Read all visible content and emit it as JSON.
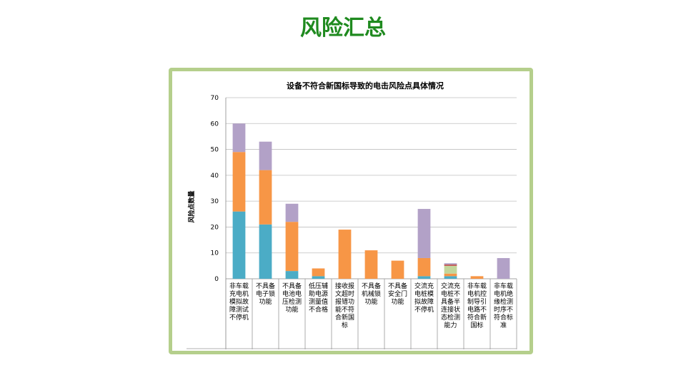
{
  "slide": {
    "title": "风险汇总"
  },
  "colors": {
    "series1": "#4bacc6",
    "series2": "#f79646",
    "series3": "#b2a1c7",
    "series4": "#c3d69b",
    "series5": "#c0504d",
    "frame": "#b5cf8c",
    "title": "#1f8a1f"
  },
  "chart_data": {
    "type": "bar",
    "stacked": true,
    "title": "设备不符合新国标导致的电击风险点具体情况",
    "xlabel": "",
    "ylabel": "风险点数量",
    "ylim": [
      0,
      70
    ],
    "yticks": [
      0,
      10,
      20,
      30,
      40,
      50,
      60,
      70
    ],
    "grid": true,
    "categories": [
      "非车载充电机模拟故障测试不停机",
      "不具备电子锁功能",
      "不具备电池电压检测功能",
      "低压辅助电源测量值不合格",
      "接收报文超时报错功能不符合新国标",
      "不具备机械锁功能",
      "不具备安全门功能",
      "交流充电桩模拟故障不停机",
      "交流充电桩不具备半连接状态检测能力",
      "非车载电机控制导引电路不符合新国标",
      "非车载电机绝缘检测时序不符合标准"
    ],
    "series": [
      {
        "color": "#4bacc6",
        "values": [
          26,
          21,
          3,
          1,
          0,
          0,
          0,
          1,
          1,
          0,
          0
        ]
      },
      {
        "color": "#f79646",
        "values": [
          23,
          21,
          19,
          3,
          19,
          11,
          7,
          7,
          1,
          1,
          0
        ]
      },
      {
        "color": "#c3d69b",
        "values": [
          0,
          0,
          0,
          0,
          0,
          0,
          0,
          0,
          3,
          0,
          0
        ]
      },
      {
        "color": "#c0504d",
        "values": [
          0,
          0,
          0,
          0,
          0,
          0,
          0,
          0,
          0.5,
          0,
          0
        ]
      },
      {
        "color": "#b2a1c7",
        "values": [
          11,
          11,
          7,
          0,
          0,
          0,
          0,
          19,
          0.5,
          0,
          8
        ]
      }
    ]
  }
}
